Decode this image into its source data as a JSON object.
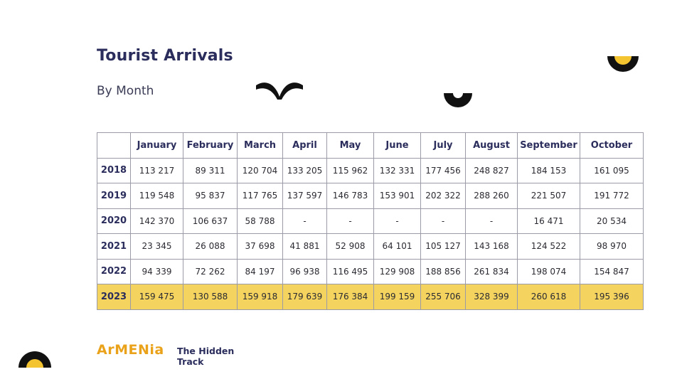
{
  "title": "Tourist Arrivals",
  "subtitle": "By Month",
  "table": {
    "columns": [
      "",
      "January",
      "February",
      "March",
      "April",
      "May",
      "June",
      "July",
      "August",
      "September",
      "October"
    ],
    "rows": [
      {
        "year": "2018",
        "values": [
          "113 217",
          "89 311",
          "120 704",
          "133 205",
          "115 962",
          "132 331",
          "177 456",
          "248 827",
          "184 153",
          "161 095"
        ]
      },
      {
        "year": "2019",
        "values": [
          "119 548",
          "95 837",
          "117 765",
          "137 597",
          "146 783",
          "153 901",
          "202 322",
          "288 260",
          "221 507",
          "191 772"
        ]
      },
      {
        "year": "2020",
        "values": [
          "142 370",
          "106 637",
          "58 788",
          "-",
          "-",
          "-",
          "-",
          "-",
          "16 471",
          "20 534"
        ]
      },
      {
        "year": "2021",
        "values": [
          "23 345",
          "26 088",
          "37 698",
          "41 881",
          "52 908",
          "64 101",
          "105 127",
          "143 168",
          "124 522",
          "98 970"
        ]
      },
      {
        "year": "2022",
        "values": [
          "94 339",
          "72 262",
          "84 197",
          "96 938",
          "116 495",
          "129 908",
          "188 856",
          "261 834",
          "198 074",
          "154 847"
        ]
      },
      {
        "year": "2023",
        "values": [
          "159 475",
          "130 588",
          "159 918",
          "179 639",
          "176 384",
          "199 159",
          "255 706",
          "328 399",
          "260 618",
          "195 396"
        ]
      }
    ],
    "highlight_row": "2023",
    "highlight_color": "#f4d35e"
  },
  "logo": {
    "brand": "ArMENia",
    "tagline_line1": "The Hidden",
    "tagline_line2": "Track"
  },
  "colors": {
    "title": "#2b2d5c",
    "accent_yellow": "#f4c430",
    "brand_orange": "#e9a21a",
    "deco_black": "#111111"
  }
}
